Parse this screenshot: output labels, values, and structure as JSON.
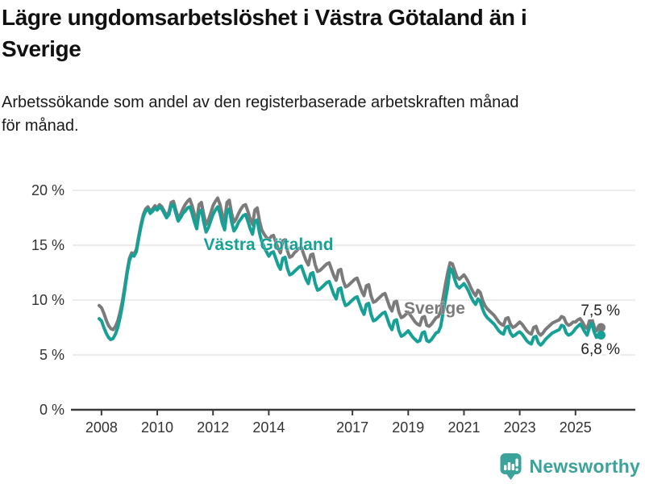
{
  "title": {
    "line1": "Lägre ungdomsarbetslöshet i Västra Götaland än i",
    "line2": "Sverige"
  },
  "subtitle": {
    "line1": "Arbetssökande som andel av den registerbaserade arbetskraften månad",
    "line2": "för månad."
  },
  "footer": {
    "brand": "Newsworthy",
    "logo_icon": "bar-chart-speech-bubble-icon"
  },
  "colors": {
    "vastra_gotaland": "#17a095",
    "sverige": "#7b7b7b",
    "gridline": "#e0e0e0",
    "axis": "#3a3a3a",
    "axis_text": "#333333",
    "end_label_text": "#222222",
    "logo_teal": "#3ba39a",
    "title_text": "#111111"
  },
  "chart_data": {
    "type": "line",
    "title": "Lägre ungdomsarbetslöshet i Västra Götaland än i Sverige",
    "subtitle": "Arbetssökande som andel av den registerbaserade arbetskraften månad för månad.",
    "unit": "%",
    "frequency": "monthly",
    "x_start": "2007-12",
    "x_end": "2025-12",
    "x_tick_years": [
      2008,
      2010,
      2012,
      2014,
      2017,
      2019,
      2021,
      2023,
      2025
    ],
    "y_ticks": [
      0,
      5,
      10,
      15,
      20
    ],
    "y_tick_labels": [
      "0 %",
      "5 %",
      "10 %",
      "15 %",
      "20 %"
    ],
    "ylim": [
      0,
      21
    ],
    "grid": "horizontal",
    "legend_position": "inline-labels",
    "series": [
      {
        "name": "Sverige",
        "inline_label": "Sverige",
        "end_label": "7,5 %",
        "end_value": 7.5,
        "color": "#7b7b7b",
        "values": [
          9.5,
          9.3,
          8.8,
          8.2,
          7.7,
          7.4,
          7.3,
          7.6,
          8.1,
          8.9,
          9.9,
          11.2,
          12.6,
          13.8,
          14.3,
          14.2,
          14.6,
          15.8,
          16.9,
          17.8,
          18.3,
          18.5,
          18.1,
          18.3,
          18.6,
          18.4,
          18.7,
          18.5,
          18.1,
          17.7,
          18.0,
          18.9,
          19.0,
          18.2,
          17.5,
          17.8,
          18.3,
          18.7,
          19.0,
          19.2,
          18.6,
          17.8,
          17.2,
          18.7,
          18.9,
          17.8,
          16.9,
          17.3,
          17.9,
          18.6,
          19.0,
          19.3,
          18.7,
          17.8,
          17.2,
          18.9,
          19.1,
          17.9,
          17.1,
          17.4,
          17.9,
          18.3,
          18.6,
          18.7,
          18.1,
          17.4,
          16.9,
          18.2,
          18.4,
          17.2,
          16.4,
          16.0,
          15.7,
          15.5,
          15.8,
          15.9,
          15.3,
          14.7,
          14.3,
          15.4,
          15.5,
          14.5,
          13.9,
          14.0,
          14.3,
          14.5,
          14.7,
          14.8,
          14.2,
          13.6,
          13.2,
          14.1,
          14.2,
          13.2,
          12.6,
          12.7,
          12.9,
          13.1,
          13.3,
          13.4,
          12.8,
          12.2,
          11.8,
          12.7,
          12.8,
          11.8,
          11.2,
          11.3,
          11.5,
          11.7,
          11.9,
          12.0,
          11.4,
          10.8,
          10.4,
          11.3,
          11.4,
          10.4,
          9.8,
          9.9,
          10.1,
          10.3,
          10.5,
          10.6,
          10.0,
          9.4,
          9.0,
          9.8,
          9.9,
          8.9,
          8.4,
          8.5,
          8.7,
          8.9,
          8.6,
          8.3,
          8.0,
          7.8,
          7.7,
          8.4,
          8.5,
          7.7,
          7.6,
          7.8,
          8.1,
          8.4,
          8.5,
          9.0,
          10.2,
          11.4,
          12.5,
          13.4,
          13.3,
          12.7,
          12.1,
          11.9,
          12.1,
          12.3,
          12.0,
          11.6,
          11.1,
          10.7,
          10.4,
          10.9,
          10.7,
          10.0,
          9.5,
          9.2,
          9.0,
          8.8,
          8.6,
          8.3,
          8.0,
          7.8,
          7.7,
          8.3,
          8.4,
          7.8,
          7.5,
          7.6,
          7.8,
          8.0,
          7.8,
          7.5,
          7.2,
          7.0,
          6.9,
          7.5,
          7.6,
          7.0,
          6.8,
          7.0,
          7.3,
          7.5,
          7.7,
          7.9,
          8.0,
          8.1,
          8.2,
          8.5,
          8.4,
          7.9,
          7.7,
          7.8,
          8.0,
          8.0,
          8.2,
          8.3,
          8.0,
          7.6,
          7.4,
          8.1,
          8.3,
          7.6,
          7.2,
          7.4,
          7.5
        ]
      },
      {
        "name": "Västra Götaland",
        "inline_label": "Västra Götaland",
        "end_label": "6,8 %",
        "end_value": 6.8,
        "color": "#17a095",
        "values": [
          8.3,
          8.1,
          7.5,
          7.0,
          6.6,
          6.4,
          6.5,
          6.9,
          7.5,
          8.4,
          9.5,
          10.9,
          12.4,
          13.6,
          14.1,
          14.0,
          14.4,
          15.6,
          16.7,
          17.6,
          18.1,
          18.3,
          17.9,
          18.1,
          18.4,
          18.2,
          18.5,
          18.3,
          17.9,
          17.5,
          17.8,
          18.6,
          18.7,
          17.9,
          17.2,
          17.5,
          17.9,
          18.1,
          18.4,
          18.5,
          17.9,
          17.1,
          16.5,
          18.0,
          18.2,
          17.1,
          16.2,
          16.6,
          17.2,
          17.8,
          18.2,
          18.5,
          17.9,
          17.0,
          16.4,
          18.1,
          18.3,
          17.1,
          16.3,
          16.6,
          17.1,
          17.4,
          17.7,
          17.8,
          17.2,
          16.5,
          16.0,
          17.2,
          17.3,
          16.1,
          15.3,
          14.8,
          14.4,
          14.0,
          14.3,
          14.4,
          13.8,
          13.2,
          12.8,
          13.8,
          13.9,
          12.9,
          12.3,
          12.4,
          12.6,
          12.8,
          13.0,
          13.1,
          12.5,
          11.9,
          11.5,
          12.4,
          12.5,
          11.5,
          10.9,
          11.0,
          11.2,
          11.4,
          11.6,
          11.7,
          11.1,
          10.5,
          10.1,
          11.0,
          11.1,
          10.1,
          9.5,
          9.6,
          9.8,
          10.0,
          10.2,
          10.3,
          9.7,
          9.1,
          8.7,
          9.6,
          9.7,
          8.7,
          8.1,
          8.2,
          8.4,
          8.6,
          8.8,
          8.9,
          8.3,
          7.7,
          7.3,
          8.1,
          8.2,
          7.2,
          6.7,
          6.8,
          7.0,
          7.2,
          6.9,
          6.6,
          6.4,
          6.2,
          6.3,
          7.0,
          7.1,
          6.3,
          6.2,
          6.4,
          6.7,
          7.0,
          7.1,
          7.6,
          8.8,
          10.0,
          11.2,
          12.9,
          12.6,
          11.9,
          11.3,
          11.1,
          11.3,
          11.5,
          11.2,
          10.8,
          10.3,
          9.9,
          9.6,
          10.1,
          9.9,
          9.2,
          8.7,
          8.4,
          8.2,
          8.0,
          7.8,
          7.5,
          7.2,
          7.0,
          6.9,
          7.5,
          7.6,
          7.0,
          6.7,
          6.8,
          7.0,
          7.1,
          6.9,
          6.6,
          6.3,
          6.1,
          6.0,
          6.6,
          6.7,
          6.1,
          5.9,
          6.1,
          6.4,
          6.6,
          6.8,
          7.0,
          7.1,
          7.2,
          7.3,
          7.7,
          7.6,
          7.0,
          6.8,
          6.9,
          7.1,
          7.4,
          7.6,
          7.8,
          7.5,
          7.1,
          6.8,
          7.5,
          7.9,
          7.1,
          6.6,
          6.7,
          6.8
        ]
      }
    ]
  }
}
